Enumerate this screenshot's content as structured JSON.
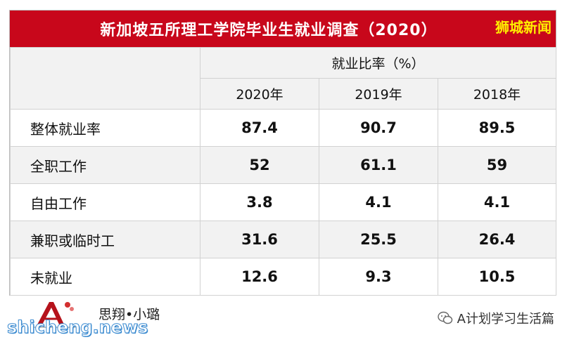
{
  "title": "新加坡五所理工学院毕业生就业调查（2020）",
  "brand": "狮城新闻",
  "header": {
    "group_label": "就业比率（%）",
    "years": [
      "2020年",
      "2019年",
      "2018年"
    ]
  },
  "rows": [
    {
      "label": "整体就业率",
      "values": [
        "87.4",
        "90.7",
        "89.5"
      ]
    },
    {
      "label": "全职工作",
      "values": [
        "52",
        "61.1",
        "59"
      ]
    },
    {
      "label": "自由工作",
      "values": [
        "3.8",
        "4.1",
        "4.1"
      ]
    },
    {
      "label": "兼职或临时工",
      "values": [
        "31.6",
        "25.5",
        "26.4"
      ]
    },
    {
      "label": "未就业",
      "values": [
        "12.6",
        "9.3",
        "10.5"
      ]
    }
  ],
  "footer": {
    "signature": "思翔•小璐",
    "watermark": "shicheng.news",
    "account": "A计划学习生活篇"
  },
  "colors": {
    "title_bg": "#c8071b",
    "brand_text": "#ffef00",
    "row_shade": "#f2f2f2"
  },
  "icons": {
    "logo": "A-logo-icon",
    "account": "wechat-icon"
  }
}
